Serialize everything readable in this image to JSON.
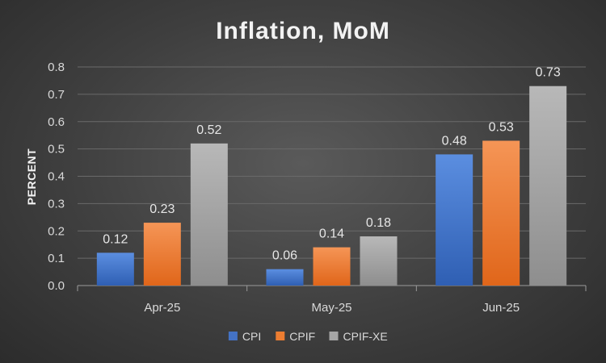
{
  "chart_data": {
    "type": "bar",
    "title": "Inflation, MoM",
    "ylabel": "PERCENT",
    "xlabel": "",
    "categories": [
      "Apr-25",
      "May-25",
      "Jun-25"
    ],
    "series": [
      {
        "name": "CPI",
        "values": [
          0.12,
          0.06,
          0.48
        ],
        "labels": [
          "0.12",
          "0.06",
          "0.48"
        ],
        "color": "#4472c4"
      },
      {
        "name": "CPIF",
        "values": [
          0.23,
          0.14,
          0.53
        ],
        "labels": [
          "0.23",
          "0.14",
          "0.53"
        ],
        "color": "#ed7d31"
      },
      {
        "name": "CPIF-XE",
        "values": [
          0.52,
          0.18,
          0.73
        ],
        "labels": [
          "0.52",
          "0.18",
          "0.73"
        ],
        "color": "#a5a5a5"
      }
    ],
    "ylim": [
      0,
      0.8
    ],
    "yticks": [
      "0.0",
      "0.1",
      "0.2",
      "0.3",
      "0.4",
      "0.5",
      "0.6",
      "0.7",
      "0.8"
    ],
    "grid": true,
    "legend_position": "bottom"
  }
}
